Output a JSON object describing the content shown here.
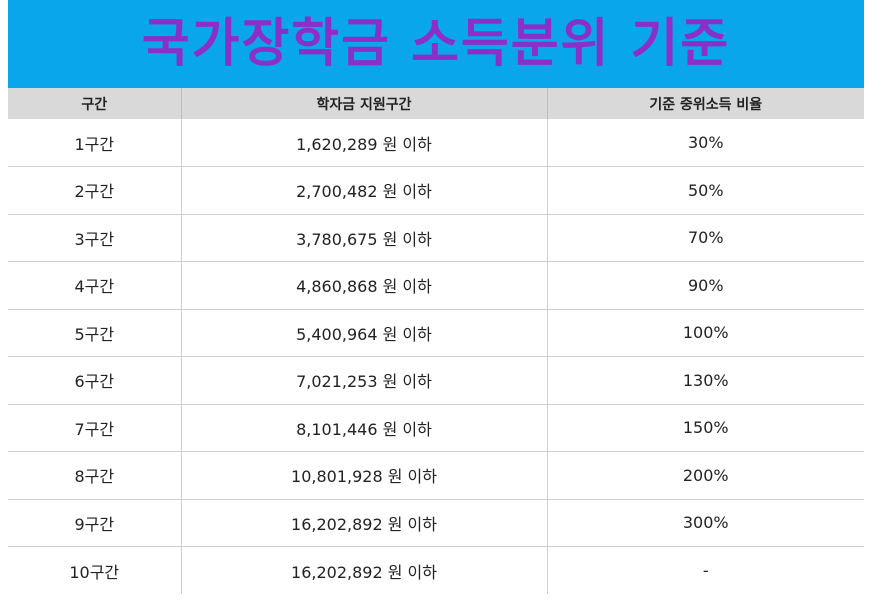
{
  "title": "국가장학금 소득분위 기준",
  "colors": {
    "banner_background": "#0aa6ec",
    "title_text": "#8b2fc9",
    "header_background": "#d9d9d9"
  },
  "table": {
    "headers": [
      "구간",
      "학자금 지원구간",
      "기준 중위소득 비율"
    ],
    "rows": [
      {
        "section": "1구간",
        "amount": "1,620,289 원 이하",
        "ratio": "30%"
      },
      {
        "section": "2구간",
        "amount": "2,700,482 원 이하",
        "ratio": "50%"
      },
      {
        "section": "3구간",
        "amount": "3,780,675 원 이하",
        "ratio": "70%"
      },
      {
        "section": "4구간",
        "amount": "4,860,868 원 이하",
        "ratio": "90%"
      },
      {
        "section": "5구간",
        "amount": "5,400,964 원 이하",
        "ratio": "100%"
      },
      {
        "section": "6구간",
        "amount": "7,021,253 원 이하",
        "ratio": "130%"
      },
      {
        "section": "7구간",
        "amount": "8,101,446 원 이하",
        "ratio": "150%"
      },
      {
        "section": "8구간",
        "amount": "10,801,928 원 이하",
        "ratio": "200%"
      },
      {
        "section": "9구간",
        "amount": "16,202,892 원 이하",
        "ratio": "300%"
      },
      {
        "section": "10구간",
        "amount": "16,202,892 원 이하",
        "ratio": "-"
      }
    ]
  }
}
